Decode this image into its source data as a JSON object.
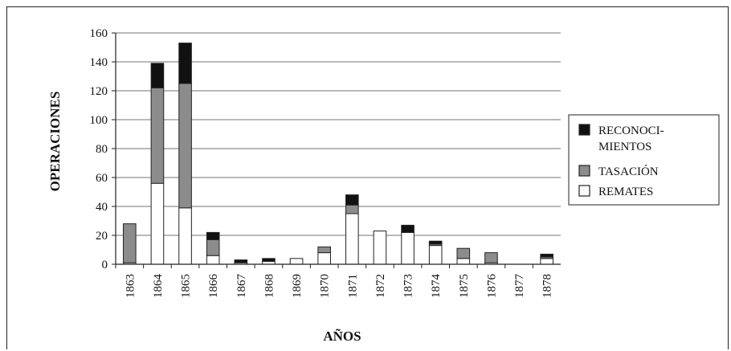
{
  "chart_data": {
    "type": "bar",
    "stacked": true,
    "xlabel": "AÑOS",
    "ylabel": "OPERACIONES",
    "ylim": [
      0,
      160
    ],
    "yticks": [
      0,
      20,
      40,
      60,
      80,
      100,
      120,
      140,
      160
    ],
    "grid": true,
    "legend_position": "right",
    "categories": [
      "1863",
      "1864",
      "1865",
      "1866",
      "1867",
      "1868",
      "1869",
      "1870",
      "1871",
      "1872",
      "1873",
      "1874",
      "1875",
      "1876",
      "1877",
      "1878"
    ],
    "series": [
      {
        "name": "REMATES",
        "color": "#ffffff",
        "values": [
          1,
          56,
          39,
          6,
          1,
          2,
          4,
          8,
          35,
          23,
          22,
          13,
          4,
          1,
          0,
          4
        ]
      },
      {
        "name": "TASACIÓN",
        "color": "#8c8c8c",
        "values": [
          27,
          66,
          86,
          11,
          0,
          0,
          0,
          4,
          6,
          0,
          0,
          1,
          7,
          7,
          0,
          1
        ]
      },
      {
        "name": "RECONOCI-MIENTOS",
        "color": "#111111",
        "values": [
          0,
          17,
          28,
          5,
          2,
          2,
          0,
          0,
          7,
          0,
          5,
          2,
          0,
          0,
          0,
          2
        ]
      }
    ],
    "legend": [
      {
        "line1": "RECONOCI-",
        "line2": "MIENTOS",
        "color": "#111111"
      },
      {
        "line1": "TASACIÓN",
        "line2": "",
        "color": "#8c8c8c"
      },
      {
        "line1": "REMATES",
        "line2": "",
        "color": "#ffffff"
      }
    ]
  }
}
